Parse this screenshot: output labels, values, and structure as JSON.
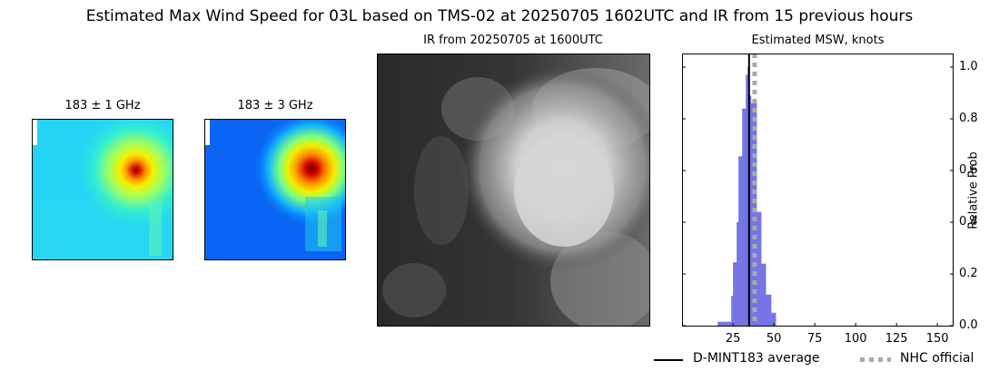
{
  "figure": {
    "suptitle": "Estimated Max Wind Speed for 03L based on TMS-02 at 20250705 1602UTC and IR from 15 previous hours"
  },
  "panels": {
    "mw1": {
      "title": "183 ± 1 GHz"
    },
    "mw3": {
      "title": "183 ± 3 GHz"
    },
    "ir": {
      "title": "IR from 20250705 at 1600UTC"
    },
    "hist": {
      "title": "Estimated MSW, knots",
      "ylabel": "Relative Prob"
    }
  },
  "legend": {
    "items": [
      {
        "label": "D-MINT183 average",
        "style": "solid",
        "color": "#000000"
      },
      {
        "label": "NHC official",
        "style": "dotted",
        "color": "#a9a9a9"
      }
    ]
  },
  "colors": {
    "bar": "#7575e6",
    "mean_line": "#000000",
    "nhc_line": "#a9a9a9"
  },
  "chart_data": {
    "type": "bar",
    "title": "Estimated MSW, knots",
    "xlabel": "",
    "ylabel": "Relative Prob",
    "xlim": [
      0,
      172
    ],
    "ylim": [
      0,
      1.05
    ],
    "xticks": [
      25,
      50,
      75,
      100,
      125,
      150
    ],
    "yticks": [
      0.0,
      0.2,
      0.4,
      0.6,
      0.8,
      1.0
    ],
    "ytick_labels": [
      "0.0",
      "0.2",
      "0.4",
      "0.6",
      "0.8",
      "1.0"
    ],
    "bins": [
      {
        "x0": 15.6,
        "x1": 23.9,
        "value": 0.015
      },
      {
        "x0": 23.9,
        "x1": 25.0,
        "value": 0.115
      },
      {
        "x0": 25.0,
        "x1": 27.2,
        "value": 0.245
      },
      {
        "x0": 27.2,
        "x1": 28.3,
        "value": 0.4
      },
      {
        "x0": 28.3,
        "x1": 30.6,
        "value": 0.655
      },
      {
        "x0": 30.6,
        "x1": 32.8,
        "value": 0.84
      },
      {
        "x0": 32.8,
        "x1": 33.9,
        "value": 0.97
      },
      {
        "x0": 33.9,
        "x1": 35.0,
        "value": 1.0
      },
      {
        "x0": 35.0,
        "x1": 36.0,
        "value": 0.89
      },
      {
        "x0": 36.0,
        "x1": 39.4,
        "value": 0.86
      },
      {
        "x0": 39.4,
        "x1": 42.2,
        "value": 0.44
      },
      {
        "x0": 42.2,
        "x1": 45.0,
        "value": 0.24
      },
      {
        "x0": 45.0,
        "x1": 48.3,
        "value": 0.12
      },
      {
        "x0": 48.3,
        "x1": 51.1,
        "value": 0.05
      }
    ],
    "vlines": [
      {
        "name": "D-MINT183 average",
        "x": 34.8,
        "style": "solid"
      },
      {
        "name": "NHC official",
        "x": 38.2,
        "style": "dotted"
      }
    ],
    "legend_position": "below"
  }
}
